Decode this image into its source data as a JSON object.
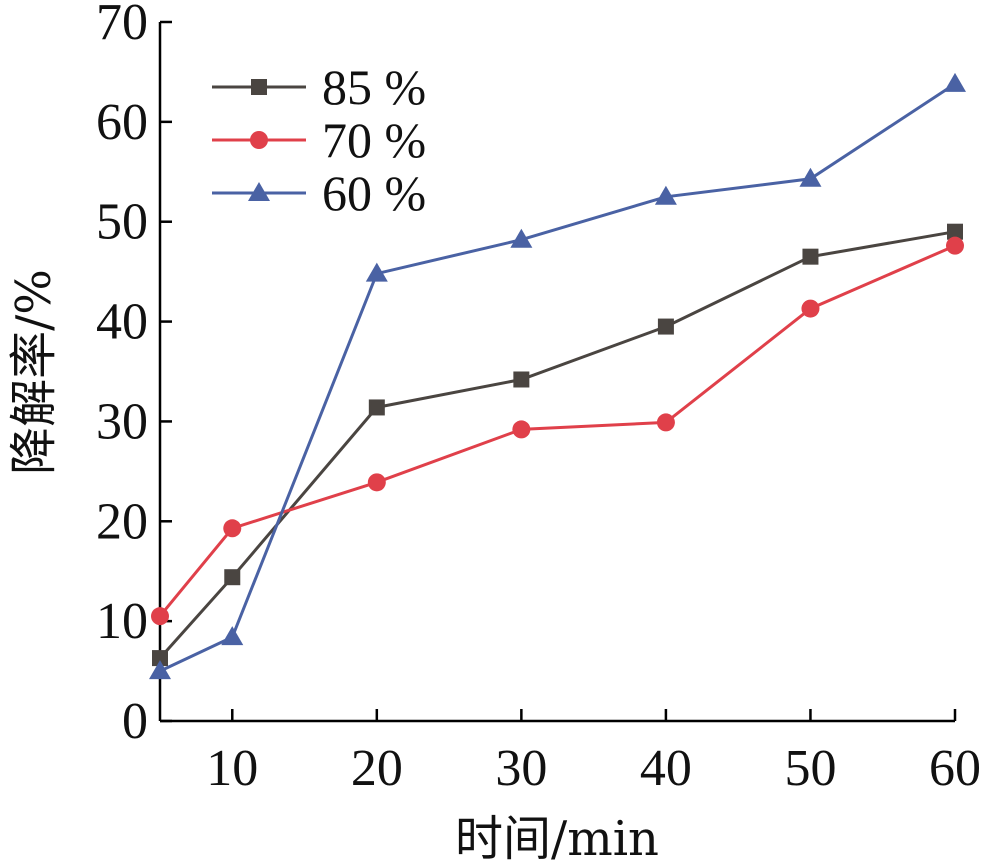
{
  "chart_data": {
    "type": "line",
    "xlabel": "时间/min",
    "ylabel": "降解率/%",
    "xlim": [
      5,
      60
    ],
    "ylim": [
      0,
      70
    ],
    "x": [
      5,
      10,
      20,
      30,
      40,
      50,
      60
    ],
    "xticks": [
      10,
      20,
      30,
      40,
      50,
      60
    ],
    "yticks": [
      0,
      10,
      20,
      30,
      40,
      50,
      60,
      70
    ],
    "grid": false,
    "legend_position": "top-left",
    "series": [
      {
        "name": "85 %",
        "color": "#4a4541",
        "marker": "square",
        "values": [
          6.3,
          14.4,
          31.4,
          34.2,
          39.5,
          46.5,
          49.0
        ]
      },
      {
        "name": "70 %",
        "color": "#e0404a",
        "marker": "circle",
        "values": [
          10.5,
          19.3,
          23.9,
          29.2,
          29.9,
          41.3,
          47.6
        ]
      },
      {
        "name": "60 %",
        "color": "#4a62a4",
        "marker": "triangle",
        "values": [
          5.0,
          8.4,
          44.8,
          48.2,
          52.5,
          54.3,
          63.8
        ]
      }
    ]
  }
}
